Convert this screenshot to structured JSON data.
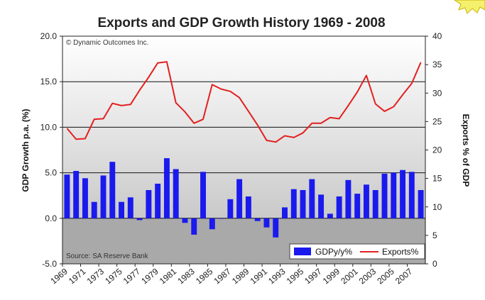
{
  "chart_data": {
    "type": "bar",
    "title": "Exports and GDP Growth History 1969 - 2008",
    "copyright": "© Dynamic Outcomes Inc.",
    "source": "Source: SA Reserve Bank",
    "ylabel_left": "GDP Growth p.a. (%)",
    "ylabel_right": "Exports % of GDP",
    "xlabel": "",
    "ylim_left": [
      -5,
      20
    ],
    "ylim_right": [
      0,
      40
    ],
    "yticks_left": [
      "-5.0",
      "0.0",
      "5.0",
      "10.0",
      "15.0",
      "20.0"
    ],
    "yticks_right": [
      "0",
      "5",
      "10",
      "15",
      "20",
      "25",
      "30",
      "35",
      "40"
    ],
    "xtick_labels": [
      "1969",
      "1971",
      "1973",
      "1975",
      "1977",
      "1979",
      "1981",
      "1983",
      "1985",
      "1987",
      "1989",
      "1991",
      "1993",
      "1995",
      "1997",
      "1999",
      "2001",
      "2003",
      "2005",
      "2007"
    ],
    "grid": "horizontal",
    "legend_position": "bottom-right",
    "x": [
      1969,
      1970,
      1971,
      1972,
      1973,
      1974,
      1975,
      1976,
      1977,
      1978,
      1979,
      1980,
      1981,
      1982,
      1983,
      1984,
      1985,
      1986,
      1987,
      1988,
      1989,
      1990,
      1991,
      1992,
      1993,
      1994,
      1995,
      1996,
      1997,
      1998,
      1999,
      2000,
      2001,
      2002,
      2003,
      2004,
      2005,
      2006,
      2007,
      2008
    ],
    "series": [
      {
        "name": "GDPy/y%",
        "kind": "bar",
        "axis": "left",
        "color": "#1a1aee",
        "values": [
          4.8,
          5.2,
          4.4,
          1.8,
          4.7,
          6.2,
          1.8,
          2.3,
          -0.2,
          3.1,
          3.8,
          6.6,
          5.4,
          -0.5,
          -1.8,
          5.1,
          -1.2,
          0.0,
          2.1,
          4.3,
          2.4,
          -0.3,
          -1.0,
          -2.1,
          1.2,
          3.2,
          3.1,
          4.3,
          2.6,
          0.5,
          2.4,
          4.2,
          2.7,
          3.7,
          3.1,
          4.9,
          5.0,
          5.3,
          5.1,
          3.1
        ]
      },
      {
        "name": "Exports%",
        "kind": "line",
        "axis": "right",
        "color": "#e32020",
        "values": [
          23.8,
          21.9,
          22.0,
          25.4,
          25.5,
          28.2,
          27.8,
          28.0,
          30.5,
          32.8,
          35.3,
          35.5,
          28.3,
          26.7,
          24.7,
          25.4,
          31.5,
          30.7,
          30.3,
          29.2,
          26.8,
          24.4,
          21.7,
          21.4,
          22.5,
          22.2,
          23.0,
          24.7,
          24.7,
          25.7,
          25.5,
          27.8,
          30.2,
          33.1,
          28.1,
          26.8,
          27.6,
          29.7,
          31.7,
          35.4
        ]
      }
    ]
  },
  "colors": {
    "grid": "#111111",
    "plot_top": "#ffffff",
    "plot_bottom": "#bcbcbc",
    "negative_region": "#a9a9a9",
    "burst": "#f4f06b"
  }
}
